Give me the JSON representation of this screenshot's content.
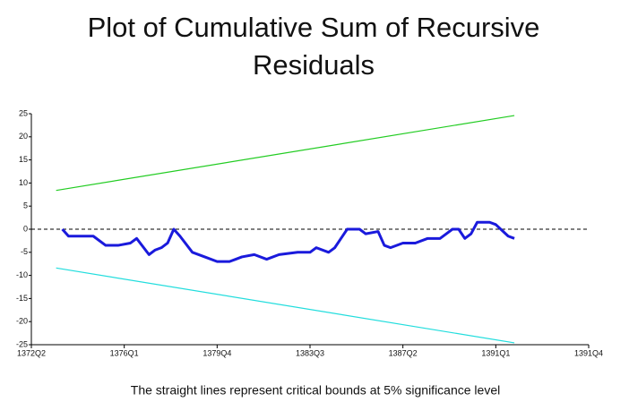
{
  "chart_data": {
    "type": "line",
    "title": "Plot of Cumulative Sum of Recursive Residuals",
    "note": "The straight lines represent critical bounds at 5% significance level",
    "xlim": [
      0,
      90
    ],
    "xticks": [
      {
        "value": 0,
        "label": "1372Q2"
      },
      {
        "value": 15,
        "label": "1376Q1"
      },
      {
        "value": 30,
        "label": "1379Q4"
      },
      {
        "value": 45,
        "label": "1383Q3"
      },
      {
        "value": 60,
        "label": "1387Q2"
      },
      {
        "value": 75,
        "label": "1391Q1"
      },
      {
        "value": 90,
        "label": "1391Q4"
      }
    ],
    "ylim": [
      -25,
      25
    ],
    "yticks": [
      25,
      20,
      15,
      10,
      5,
      0,
      -5,
      -10,
      -15,
      -20,
      -25
    ],
    "series": [
      {
        "color": "#1a1adc",
        "width": 3,
        "x": [
          5,
          6,
          8,
          10,
          12,
          14,
          16,
          17,
          19,
          20,
          21,
          22,
          23,
          24,
          26,
          28,
          30,
          32,
          33,
          34,
          36,
          38,
          40,
          43,
          45,
          46,
          48,
          49,
          50,
          51,
          53,
          54,
          56,
          57,
          58,
          60,
          62,
          64,
          66,
          67,
          68,
          69,
          70,
          71,
          72,
          74,
          75,
          77,
          78
        ],
        "values": [
          0,
          -1.5,
          -1.5,
          -1.5,
          -3.5,
          -3.5,
          -3,
          -2,
          -5.5,
          -4.5,
          -4,
          -3,
          0,
          -1.5,
          -5,
          -6,
          -7,
          -7,
          -6.5,
          -6,
          -5.5,
          -6.5,
          -5.5,
          -5,
          -5,
          -4,
          -5,
          -4,
          -2,
          0,
          0,
          -1,
          -0.5,
          -3.5,
          -4,
          -3,
          -3,
          -2,
          -2,
          -1,
          0,
          0,
          -2,
          -1,
          1.5,
          1.5,
          1,
          -1.5,
          -2
        ]
      },
      {
        "color": "#22cc22",
        "width": 1.2,
        "x": [
          4,
          78
        ],
        "values": [
          8.4,
          24.6
        ]
      },
      {
        "color": "#22dddd",
        "width": 1.2,
        "x": [
          4,
          78
        ],
        "values": [
          -8.4,
          -24.6
        ]
      }
    ]
  }
}
